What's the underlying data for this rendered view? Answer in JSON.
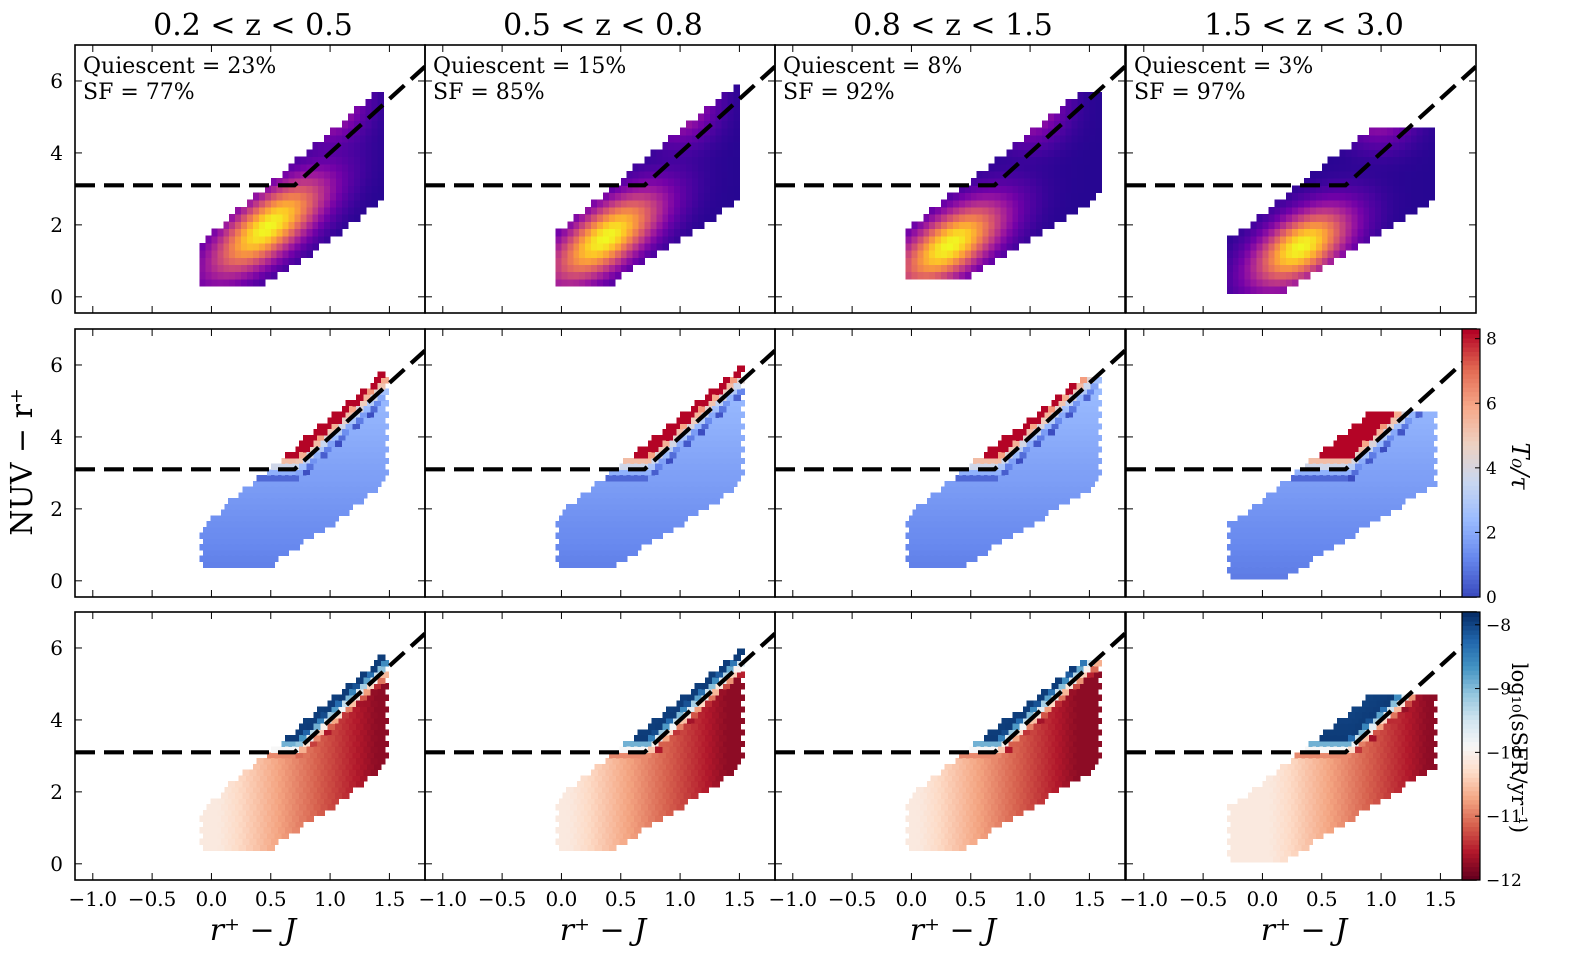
{
  "colors": {
    "plasma": [
      "#0d0887",
      "#46039f",
      "#7201a8",
      "#9c179e",
      "#bd3786",
      "#d8576b",
      "#ed7953",
      "#fb9f3a",
      "#fdca26",
      "#f0f921"
    ],
    "t_cmap": [
      "#3b4cc0",
      "#6788ee",
      "#9abbff",
      "#c9d7f0",
      "#edd1c2",
      "#f7a889",
      "#e26952",
      "#b40426"
    ],
    "ssfr_cmap": [
      "#08306b",
      "#2166ac",
      "#4393c3",
      "#92c5de",
      "#d1e5f0",
      "#f7f7f7",
      "#fddbc7",
      "#f4a582",
      "#d6604d",
      "#b2182b",
      "#67001f"
    ],
    "boundary_line": "#000000"
  },
  "icons": {
    "panel_marker": "none"
  },
  "chart_data": {
    "type": "heatmap",
    "layout": "3 rows x 4 columns, shared axes",
    "column_titles": [
      "0.2 < z < 0.5",
      "0.5 < z < 0.8",
      "0.8 < z < 1.5",
      "1.5 < z < 3.0"
    ],
    "xlabel": "r⁺ − J",
    "ylabel": "NUV − r⁺",
    "xlim": [
      -1.15,
      1.8
    ],
    "ylim": [
      -0.45,
      7.0
    ],
    "xticks": [
      -1.0,
      -0.5,
      0.0,
      0.5,
      1.0,
      1.5
    ],
    "xtick_labels": [
      "−1.0",
      "−0.5",
      "0.0",
      "0.5",
      "1.0",
      "1.5"
    ],
    "yticks": [
      0,
      2,
      4,
      6
    ],
    "ytick_labels": [
      "0",
      "2",
      "4",
      "6"
    ],
    "annotations": [
      {
        "quiescent": "Quiescent = 23%",
        "sf": "SF = 77%"
      },
      {
        "quiescent": "Quiescent = 15%",
        "sf": "SF = 85%"
      },
      {
        "quiescent": "Quiescent = 8%",
        "sf": "SF = 92%"
      },
      {
        "quiescent": "Quiescent = 3%",
        "sf": "SF = 97%"
      }
    ],
    "boundary": {
      "description": "quiescent / star-forming separation",
      "points": [
        [
          -1.15,
          3.1
        ],
        [
          0.7,
          3.1
        ],
        [
          1.8,
          6.4
        ]
      ]
    },
    "distributions": [
      {
        "center": [
          0.45,
          1.85
        ],
        "axis_slope": 2.8,
        "spread_major": 0.45,
        "spread_minor": 0.18,
        "x_range": [
          -0.1,
          1.4
        ],
        "lower_edge": [
          0.0,
          0.35
        ],
        "upper_edge_at_x1": 6.9
      },
      {
        "center": [
          0.35,
          1.55
        ],
        "axis_slope": 2.7,
        "spread_major": 0.42,
        "spread_minor": 0.18,
        "x_range": [
          -0.05,
          1.45
        ],
        "lower_edge": [
          -0.05,
          0.35
        ],
        "upper_edge_at_x1": 6.3
      },
      {
        "center": [
          0.3,
          1.35
        ],
        "axis_slope": 2.6,
        "spread_major": 0.4,
        "spread_minor": 0.18,
        "x_range": [
          -0.05,
          1.55
        ],
        "lower_edge": [
          -0.05,
          0.4
        ],
        "upper_edge_at_x1": 5.6
      },
      {
        "center": [
          0.3,
          1.3
        ],
        "axis_slope": 2.6,
        "spread_major": 0.35,
        "spread_minor": 0.16,
        "x_range": [
          -0.3,
          1.4
        ],
        "lower_edge": [
          -0.3,
          0.1
        ],
        "upper_edge_at_x1": 4.6
      }
    ],
    "rows": [
      {
        "name": "density",
        "colormap": "plasma",
        "colorbar": null
      },
      {
        "name": "T0/tau",
        "colormap": "coolwarm",
        "colorbar": {
          "label": "T₀/τ",
          "range": [
            0,
            8.3
          ],
          "ticks": [
            0,
            2,
            4,
            6,
            8
          ],
          "tick_labels": [
            "0",
            "2",
            "4",
            "6",
            "8"
          ]
        }
      },
      {
        "name": "log sSFR",
        "colormap": "RdBu",
        "colorbar": {
          "label": "log₁₀(sSFR/yr⁻¹)",
          "range": [
            -12,
            -7.8
          ],
          "ticks": [
            -8,
            -9,
            -10,
            -11,
            -12
          ],
          "tick_labels": [
            "−8",
            "−9",
            "−10",
            "−11",
            "−12"
          ]
        }
      }
    ]
  }
}
